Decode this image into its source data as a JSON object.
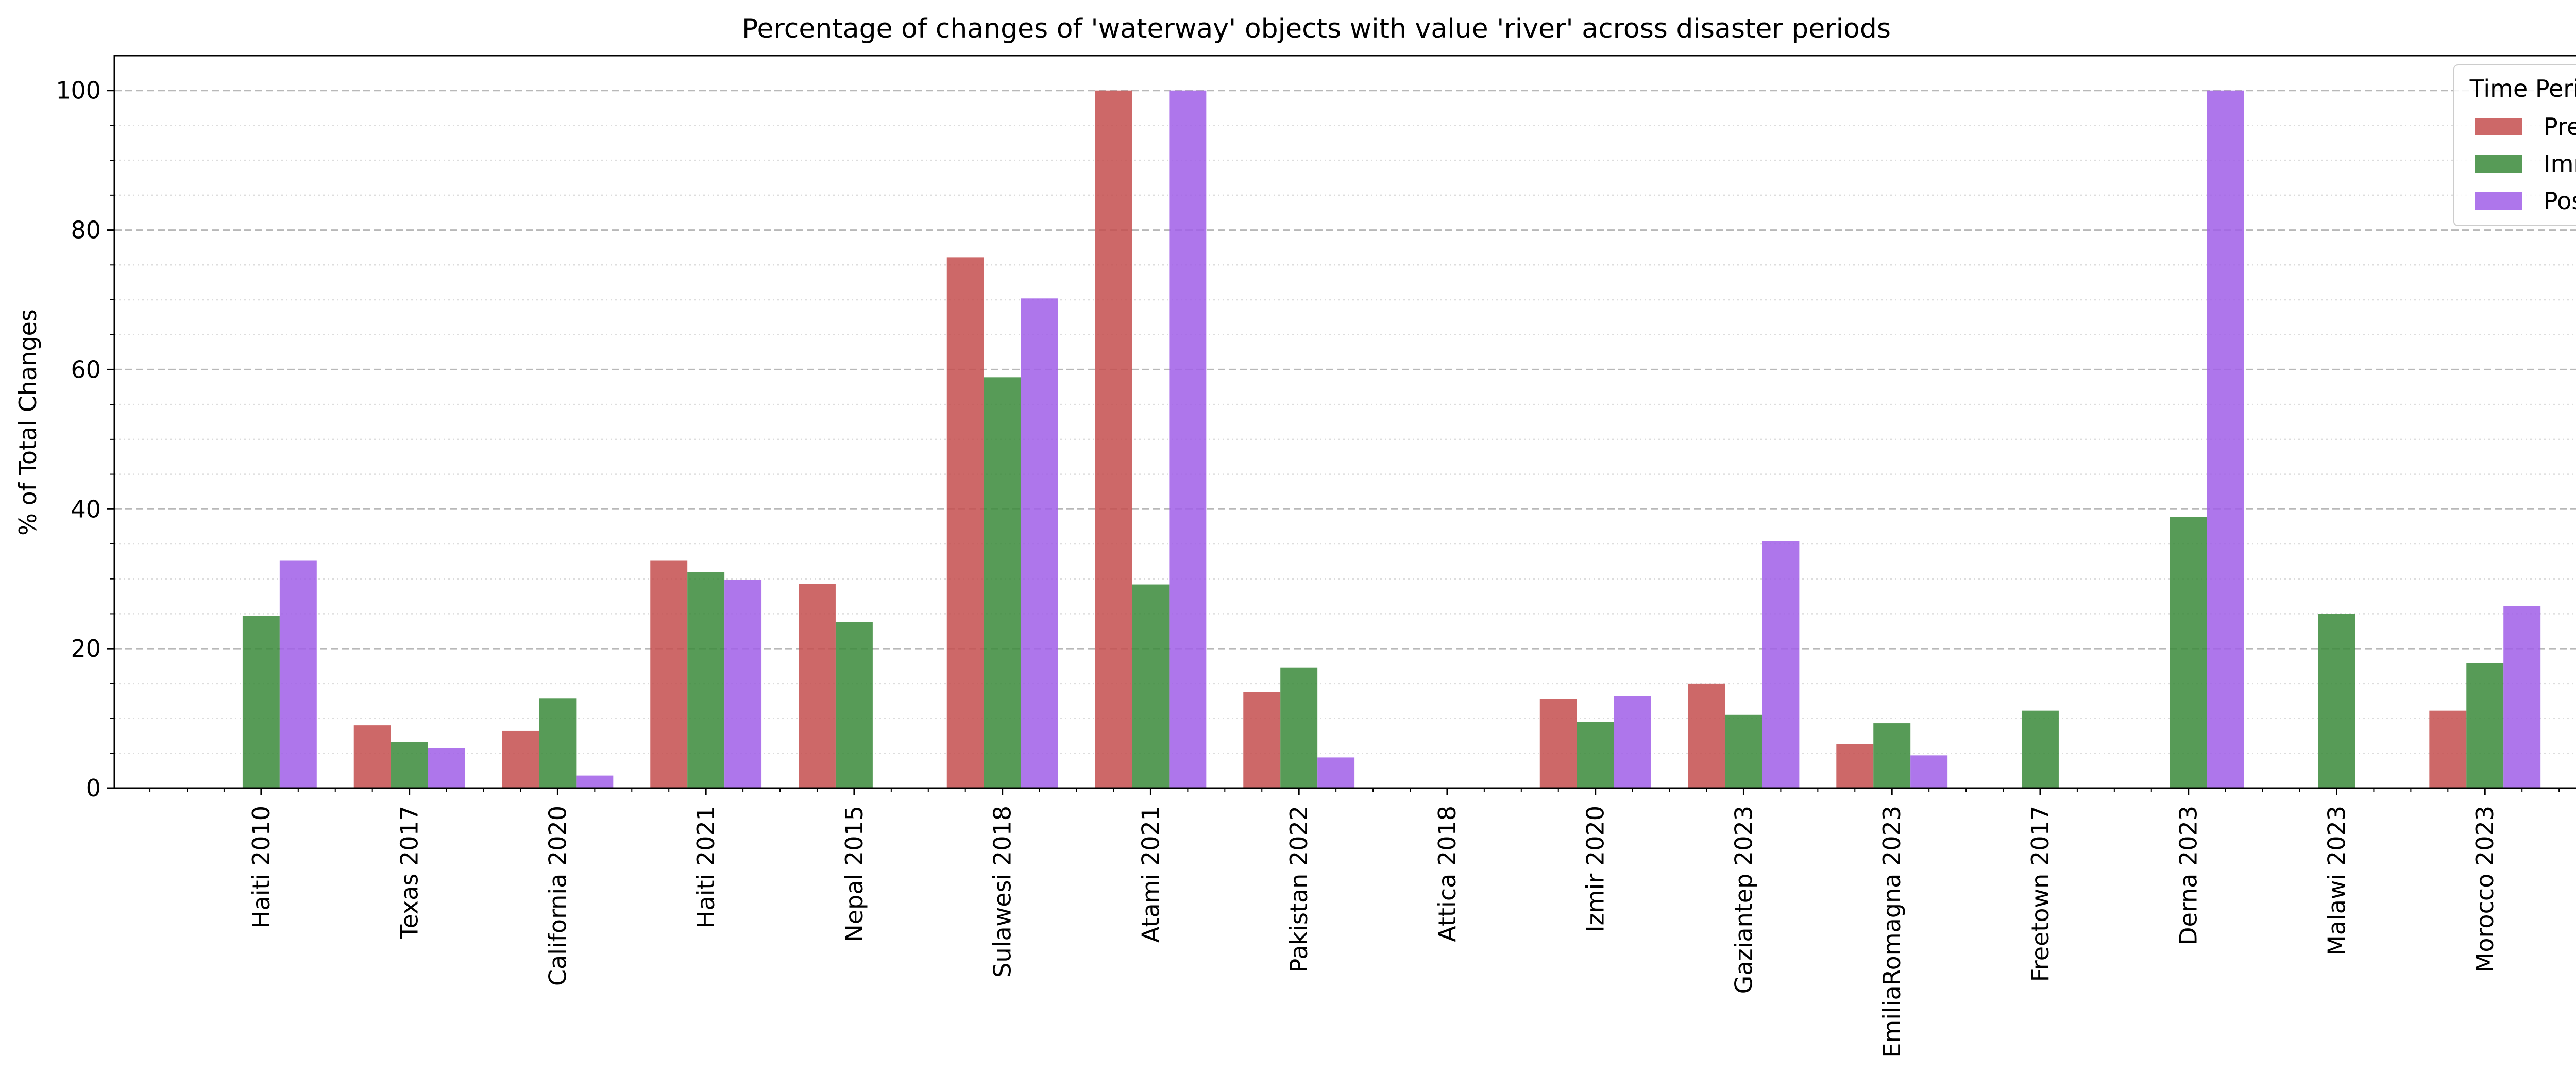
{
  "chart_data": {
    "type": "bar",
    "title": "Percentage of changes of 'waterway' objects with value 'river' across disaster periods",
    "xlabel": "",
    "ylabel": "% of Total Changes",
    "ylim": [
      0,
      105
    ],
    "yticks": [
      0,
      20,
      40,
      60,
      80,
      100
    ],
    "grid": "horizontal dashed major, dotted minor",
    "legend_title": "Time Period",
    "legend_position": "top-right",
    "categories": [
      "Haiti 2010",
      "Texas 2017",
      "California 2020",
      "Haiti 2021",
      "Nepal 2015",
      "Sulawesi 2018",
      "Atami 2021",
      "Pakistan 2022",
      "Attica 2018",
      "Izmir 2020",
      "Gaziantep 2023",
      "EmiliaRomagna 2023",
      "Freetown 2017",
      "Derna 2023",
      "Malawi 2023",
      "Morocco 2023"
    ],
    "series": [
      {
        "name": "Pre",
        "color": "#c44e4e",
        "values": [
          0,
          9.0,
          8.2,
          32.6,
          29.3,
          76.1,
          100,
          13.8,
          0,
          12.8,
          15.0,
          6.3,
          0,
          0,
          0,
          11.1
        ]
      },
      {
        "name": "Imm",
        "color": "#3a8a3a",
        "values": [
          24.7,
          6.6,
          12.9,
          31.0,
          23.8,
          58.9,
          29.2,
          17.3,
          0,
          9.5,
          10.5,
          9.3,
          11.1,
          38.9,
          25.0,
          17.9
        ]
      },
      {
        "name": "Post",
        "color": "#a05ee8",
        "values": [
          32.6,
          5.7,
          1.8,
          29.9,
          0,
          70.2,
          100,
          4.4,
          0,
          13.2,
          35.4,
          4.7,
          0,
          100,
          0,
          26.1
        ]
      }
    ]
  }
}
